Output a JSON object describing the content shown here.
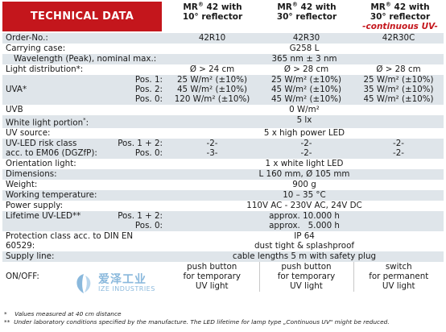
{
  "header": {
    "title": "TECHNICAL DATA",
    "cols": [
      {
        "brand": "MR",
        "reg": "®",
        "model": " 42 with",
        "line2": "10° reflector",
        "line3": ""
      },
      {
        "brand": "MR",
        "reg": "®",
        "model": " 42 with",
        "line2": "30° reflector",
        "line3": ""
      },
      {
        "brand": "MR",
        "reg": "®",
        "model": " 42 with",
        "line2": "30° reflector",
        "line3": "-continuous UV-"
      }
    ]
  },
  "rows": [
    {
      "label": "Order-No.:",
      "values": [
        "42R10",
        "42R30",
        "42R30C"
      ]
    },
    {
      "label": "Carrying case:",
      "span": "G258 L"
    },
    {
      "label": "Wavelength (Peak), nominal max.:",
      "span": "365 nm ± 3 nm"
    },
    {
      "label": "Light distribution*:",
      "values": [
        "Ø > 24 cm",
        "Ø > 28 cm",
        "Ø > 28 cm"
      ]
    },
    {
      "label": "UVA*",
      "subs": [
        "Pos. 1:",
        "Pos. 2:",
        "Pos. 0:"
      ],
      "values": [
        [
          "25 W/m² (±10%)",
          "45 W/m² (±10%)",
          "120 W/m² (±10%)"
        ],
        [
          "25 W/m² (±10%)",
          "45 W/m² (±10%)",
          "45 W/m² (±10%)"
        ],
        [
          "25 W/m² (±10%)",
          "35 W/m² (±10%)",
          "45 W/m² (±10%)"
        ]
      ]
    },
    {
      "label": "UVB",
      "span": "0 W/m²"
    },
    {
      "label": "White light portion",
      "label_sup": "*",
      "label_tail": ":",
      "span": "5 lx"
    },
    {
      "label": "UV source:",
      "span": "5 x high power LED"
    },
    {
      "label": "UV-LED risk class",
      "label2": "acc. to EM06 (DGZfP):",
      "subs": [
        "Pos. 1 + 2:",
        "Pos. 0:"
      ],
      "values": [
        [
          "-2-",
          "-3-"
        ],
        [
          "-2-",
          "-2-"
        ],
        [
          "-2-",
          "-2-"
        ]
      ]
    },
    {
      "label": "Orientation light:",
      "span": "1 x white light LED"
    },
    {
      "label": "Dimensions:",
      "span": "L 160 mm, Ø 105 mm"
    },
    {
      "label": "Weight:",
      "span": "900 g"
    },
    {
      "label": "Working temperature:",
      "span": "10 – 35 °C"
    },
    {
      "label": "Power supply:",
      "span": "110V AC - 230V AC, 24V DC"
    },
    {
      "label": "Lifetime UV-LED**",
      "subs": [
        "Pos. 1 + 2:",
        "Pos. 0:"
      ],
      "span_lines": [
        "approx. 10.000 h",
        "approx.   5.000 h"
      ]
    },
    {
      "label": "Protection class acc. to DIN EN",
      "label2": "60529:",
      "span_lines": [
        "IP 64",
        "dust tight & splashproof"
      ]
    },
    {
      "label": "Supply line:",
      "span": "cable lengths 5 m with safety plug"
    },
    {
      "label": "ON/OFF:",
      "values": [
        [
          "push button",
          "for temporary",
          "UV light"
        ],
        [
          "push button",
          "for temporary",
          "UV light"
        ],
        [
          "switch",
          "for permanent",
          "UV light"
        ]
      ]
    }
  ],
  "watermark": {
    "cn": "爱泽工业",
    "en": "IZE INDUSTRIES"
  },
  "footnotes": [
    {
      "mark": "*",
      "text": "Values measured at 40 cm distance"
    },
    {
      "mark": "**",
      "text": "Under laboratory conditions specified by the manufacture. The LED lifetime for lamp type „Continuous UV\" might be reduced."
    }
  ],
  "colors": {
    "accent_red": "#c4161c",
    "stripe": "#dfe5ea",
    "watermark_blue": "#2a7fc0"
  }
}
